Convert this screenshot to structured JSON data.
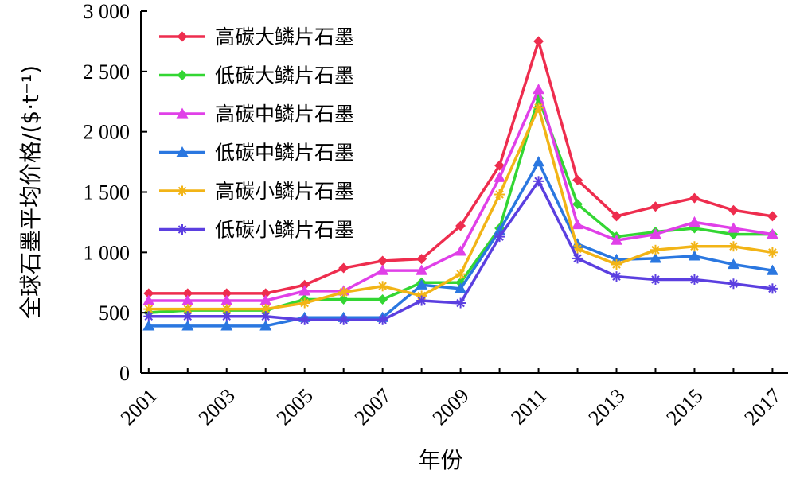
{
  "chart_data": {
    "type": "line",
    "title": "",
    "xlabel": "年份",
    "ylabel": "全球石墨平均价格/($·t⁻¹)",
    "x": [
      2001,
      2002,
      2003,
      2004,
      2005,
      2006,
      2007,
      2008,
      2009,
      2010,
      2011,
      2012,
      2013,
      2014,
      2015,
      2016,
      2017
    ],
    "xlim": [
      2000.8,
      2017.4
    ],
    "x_tick_values": [
      2001,
      2003,
      2005,
      2007,
      2009,
      2011,
      2013,
      2015,
      2017
    ],
    "x_tick_labels": [
      "2001",
      "2003",
      "2005",
      "2007",
      "2009",
      "2011",
      "2013",
      "2015",
      "2017"
    ],
    "ylim": [
      0,
      3000
    ],
    "y_tick_values": [
      0,
      500,
      1000,
      1500,
      2000,
      2500,
      3000
    ],
    "y_tick_labels": [
      "0",
      "500",
      "1 000",
      "1 500",
      "2 000",
      "2 500",
      "3 000"
    ],
    "grid": false,
    "legend_position": "top-left",
    "series": [
      {
        "name": "高碳大鳞片石墨",
        "color": "#ee2d4e",
        "marker": "diamond",
        "values": [
          660,
          660,
          660,
          660,
          730,
          870,
          930,
          945,
          1220,
          1720,
          2750,
          1600,
          1300,
          1380,
          1450,
          1350,
          1300
        ]
      },
      {
        "name": "低碳大鳞片石墨",
        "color": "#33d633",
        "marker": "diamond",
        "values": [
          500,
          520,
          520,
          520,
          610,
          610,
          610,
          750,
          750,
          1200,
          2280,
          1400,
          1130,
          1170,
          1200,
          1150,
          1150
        ]
      },
      {
        "name": "高碳中鳞片石墨",
        "color": "#e040e8",
        "marker": "triangle",
        "values": [
          600,
          600,
          600,
          600,
          680,
          680,
          850,
          850,
          1010,
          1620,
          2350,
          1230,
          1100,
          1150,
          1250,
          1200,
          1150
        ]
      },
      {
        "name": "低碳中鳞片石墨",
        "color": "#2a77e0",
        "marker": "triangle",
        "values": [
          390,
          390,
          390,
          390,
          460,
          460,
          460,
          730,
          700,
          1180,
          1750,
          1070,
          940,
          950,
          970,
          900,
          850
        ]
      },
      {
        "name": "高碳小鳞片石墨",
        "color": "#f2b416",
        "marker": "asterisk",
        "values": [
          530,
          530,
          530,
          530,
          580,
          670,
          720,
          640,
          820,
          1480,
          2200,
          1030,
          900,
          1020,
          1050,
          1050,
          1000
        ]
      },
      {
        "name": "低碳小鳞片石墨",
        "color": "#5b3fe0",
        "marker": "asterisk",
        "values": [
          470,
          470,
          470,
          470,
          440,
          440,
          440,
          600,
          580,
          1130,
          1590,
          950,
          800,
          775,
          775,
          740,
          700
        ]
      }
    ]
  }
}
